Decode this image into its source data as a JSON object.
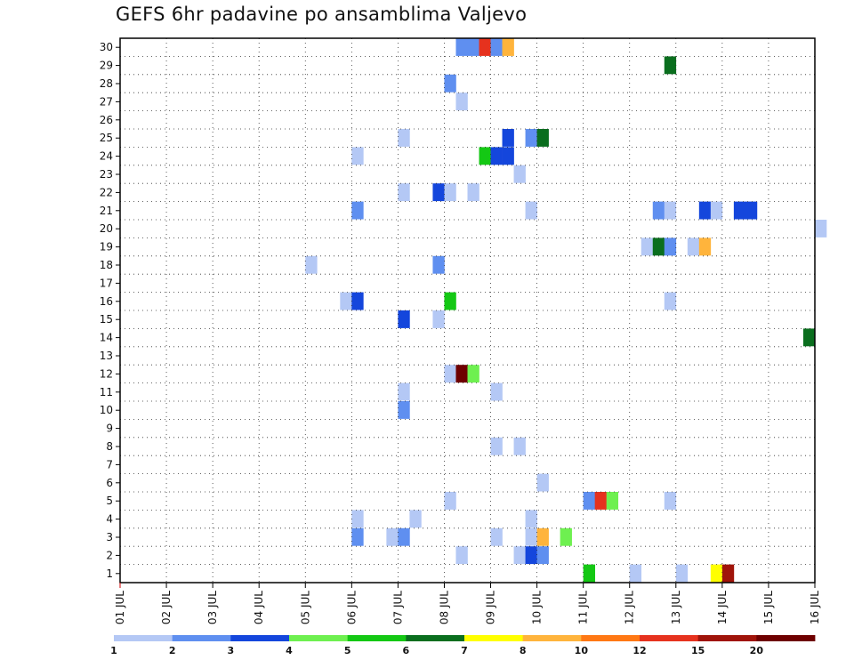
{
  "chart_data": {
    "type": "heatmap",
    "title": "GEFS 6hr padavine po ansamblima Valjevo",
    "y_ticks": [
      "30",
      "29",
      "28",
      "27",
      "26",
      "25",
      "24",
      "23",
      "22",
      "21",
      "20",
      "19",
      "18",
      "17",
      "16",
      "15",
      "14",
      "13",
      "12",
      "11",
      "10",
      "9",
      "8",
      "7",
      "6",
      "5",
      "4",
      "3",
      "2",
      "1"
    ],
    "x_ticks": [
      "01 JUL",
      "02 JUL",
      "03 JUL",
      "04 JUL",
      "05 JUL",
      "06 JUL",
      "07 JUL",
      "08 JUL",
      "09 JUL",
      "10 JUL",
      "11 JUL",
      "12 JUL",
      "13 JUL",
      "14 JUL",
      "15 JUL",
      "16 JUL"
    ],
    "ylim": [
      0,
      30
    ],
    "xlim_days": [
      1,
      16
    ],
    "grid": true,
    "colorbar": {
      "labels": [
        "1",
        "2",
        "3",
        "4",
        "5",
        "6",
        "7",
        "8",
        "10",
        "12",
        "15",
        "20"
      ],
      "colors": [
        "#b4c8f5",
        "#5f8ff0",
        "#1446dc",
        "#6ef050",
        "#14c814",
        "#0a6e1e",
        "#ffff00",
        "#ffb43c",
        "#ff7814",
        "#e6321e",
        "#a0140a",
        "#6e0000"
      ]
    },
    "cells": [
      {
        "m": 30,
        "t": 29,
        "c": 1
      },
      {
        "m": 30,
        "t": 30,
        "c": 1
      },
      {
        "m": 30,
        "t": 31,
        "c": 9
      },
      {
        "m": 30,
        "t": 32,
        "c": 1
      },
      {
        "m": 30,
        "t": 33,
        "c": 7
      },
      {
        "m": 29,
        "t": 47,
        "c": 5
      },
      {
        "m": 28,
        "t": 28,
        "c": 1
      },
      {
        "m": 27,
        "t": 29,
        "c": 0
      },
      {
        "m": 25,
        "t": 24,
        "c": 0
      },
      {
        "m": 25,
        "t": 33,
        "c": 2
      },
      {
        "m": 25,
        "t": 35,
        "c": 1
      },
      {
        "m": 25,
        "t": 36,
        "c": 5
      },
      {
        "m": 24,
        "t": 20,
        "c": 0
      },
      {
        "m": 24,
        "t": 31,
        "c": 4
      },
      {
        "m": 24,
        "t": 32,
        "c": 2
      },
      {
        "m": 24,
        "t": 33,
        "c": 2
      },
      {
        "m": 23,
        "t": 34,
        "c": 0
      },
      {
        "m": 22,
        "t": 24,
        "c": 0
      },
      {
        "m": 22,
        "t": 27,
        "c": 2
      },
      {
        "m": 22,
        "t": 28,
        "c": 0
      },
      {
        "m": 22,
        "t": 30,
        "c": 0
      },
      {
        "m": 21,
        "t": 20,
        "c": 1
      },
      {
        "m": 21,
        "t": 35,
        "c": 0
      },
      {
        "m": 21,
        "t": 46,
        "c": 1
      },
      {
        "m": 21,
        "t": 47,
        "c": 0
      },
      {
        "m": 21,
        "t": 50,
        "c": 2
      },
      {
        "m": 21,
        "t": 51,
        "c": 0
      },
      {
        "m": 21,
        "t": 53,
        "c": 2
      },
      {
        "m": 21,
        "t": 54,
        "c": 2
      },
      {
        "m": 20,
        "t": 60,
        "c": 0
      },
      {
        "m": 19,
        "t": 45,
        "c": 0
      },
      {
        "m": 19,
        "t": 46,
        "c": 5
      },
      {
        "m": 19,
        "t": 47,
        "c": 1
      },
      {
        "m": 19,
        "t": 49,
        "c": 0
      },
      {
        "m": 19,
        "t": 50,
        "c": 7
      },
      {
        "m": 18,
        "t": 16,
        "c": 0
      },
      {
        "m": 18,
        "t": 27,
        "c": 1
      },
      {
        "m": 16,
        "t": 19,
        "c": 0
      },
      {
        "m": 16,
        "t": 20,
        "c": 2
      },
      {
        "m": 16,
        "t": 28,
        "c": 4
      },
      {
        "m": 16,
        "t": 47,
        "c": 0
      },
      {
        "m": 15,
        "t": 24,
        "c": 2
      },
      {
        "m": 15,
        "t": 27,
        "c": 0
      },
      {
        "m": 14,
        "t": 59,
        "c": 5
      },
      {
        "m": 12,
        "t": 28,
        "c": 0
      },
      {
        "m": 12,
        "t": 29,
        "c": 11
      },
      {
        "m": 12,
        "t": 30,
        "c": 3
      },
      {
        "m": 11,
        "t": 24,
        "c": 0
      },
      {
        "m": 11,
        "t": 32,
        "c": 0
      },
      {
        "m": 10,
        "t": 24,
        "c": 1
      },
      {
        "m": 8,
        "t": 32,
        "c": 0
      },
      {
        "m": 8,
        "t": 34,
        "c": 0
      },
      {
        "m": 6,
        "t": 36,
        "c": 0
      },
      {
        "m": 5,
        "t": 28,
        "c": 0
      },
      {
        "m": 5,
        "t": 40,
        "c": 1
      },
      {
        "m": 5,
        "t": 41,
        "c": 9
      },
      {
        "m": 5,
        "t": 42,
        "c": 3
      },
      {
        "m": 5,
        "t": 47,
        "c": 0
      },
      {
        "m": 4,
        "t": 20,
        "c": 0
      },
      {
        "m": 4,
        "t": 25,
        "c": 0
      },
      {
        "m": 4,
        "t": 35,
        "c": 0
      },
      {
        "m": 3,
        "t": 20,
        "c": 1
      },
      {
        "m": 3,
        "t": 23,
        "c": 0
      },
      {
        "m": 3,
        "t": 24,
        "c": 1
      },
      {
        "m": 3,
        "t": 32,
        "c": 0
      },
      {
        "m": 3,
        "t": 35,
        "c": 0
      },
      {
        "m": 3,
        "t": 36,
        "c": 7
      },
      {
        "m": 3,
        "t": 38,
        "c": 3
      },
      {
        "m": 2,
        "t": 29,
        "c": 0
      },
      {
        "m": 2,
        "t": 34,
        "c": 0
      },
      {
        "m": 2,
        "t": 35,
        "c": 2
      },
      {
        "m": 2,
        "t": 36,
        "c": 1
      },
      {
        "m": 1,
        "t": 40,
        "c": 4
      },
      {
        "m": 1,
        "t": 44,
        "c": 0
      },
      {
        "m": 1,
        "t": 48,
        "c": 0
      },
      {
        "m": 1,
        "t": 51,
        "c": 6
      },
      {
        "m": 1,
        "t": 52,
        "c": 10
      }
    ]
  }
}
